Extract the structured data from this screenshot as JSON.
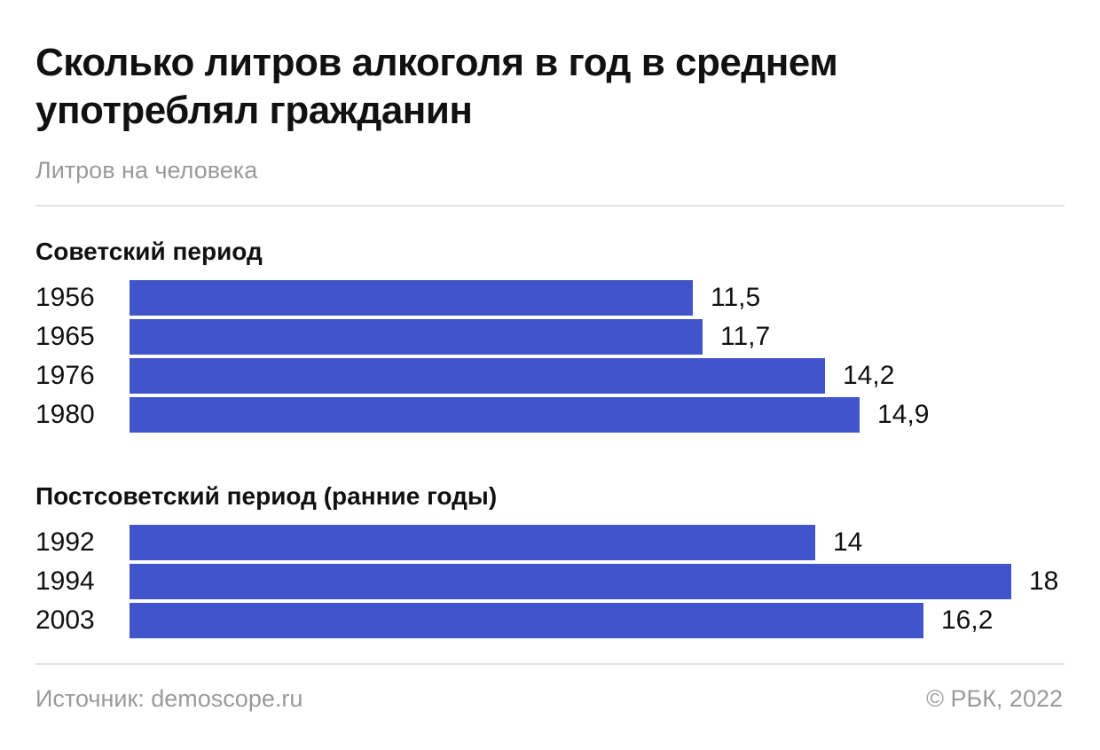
{
  "chart_data": {
    "type": "bar",
    "orientation": "horizontal",
    "title": "Сколько литров алкоголя в год в среднем употреблял гражданин",
    "subtitle": "Литров на человека",
    "bar_color": "#4055cc",
    "groups": [
      {
        "label": "Советский период",
        "categories": [
          "1956",
          "1965",
          "1976",
          "1980"
        ],
        "values": [
          11.5,
          11.7,
          14.2,
          14.9
        ],
        "value_labels": [
          "11,5",
          "11,7",
          "14,2",
          "14,9"
        ]
      },
      {
        "label": "Постсоветский период (ранние годы)",
        "categories": [
          "1992",
          "1994",
          "2003"
        ],
        "values": [
          14,
          18,
          16.2
        ],
        "value_labels": [
          "14",
          "18",
          "16,2"
        ]
      }
    ],
    "xlim": [
      0,
      18
    ]
  },
  "footer": {
    "source": "Источник: demoscope.ru",
    "copyright": "© РБК, 2022"
  }
}
